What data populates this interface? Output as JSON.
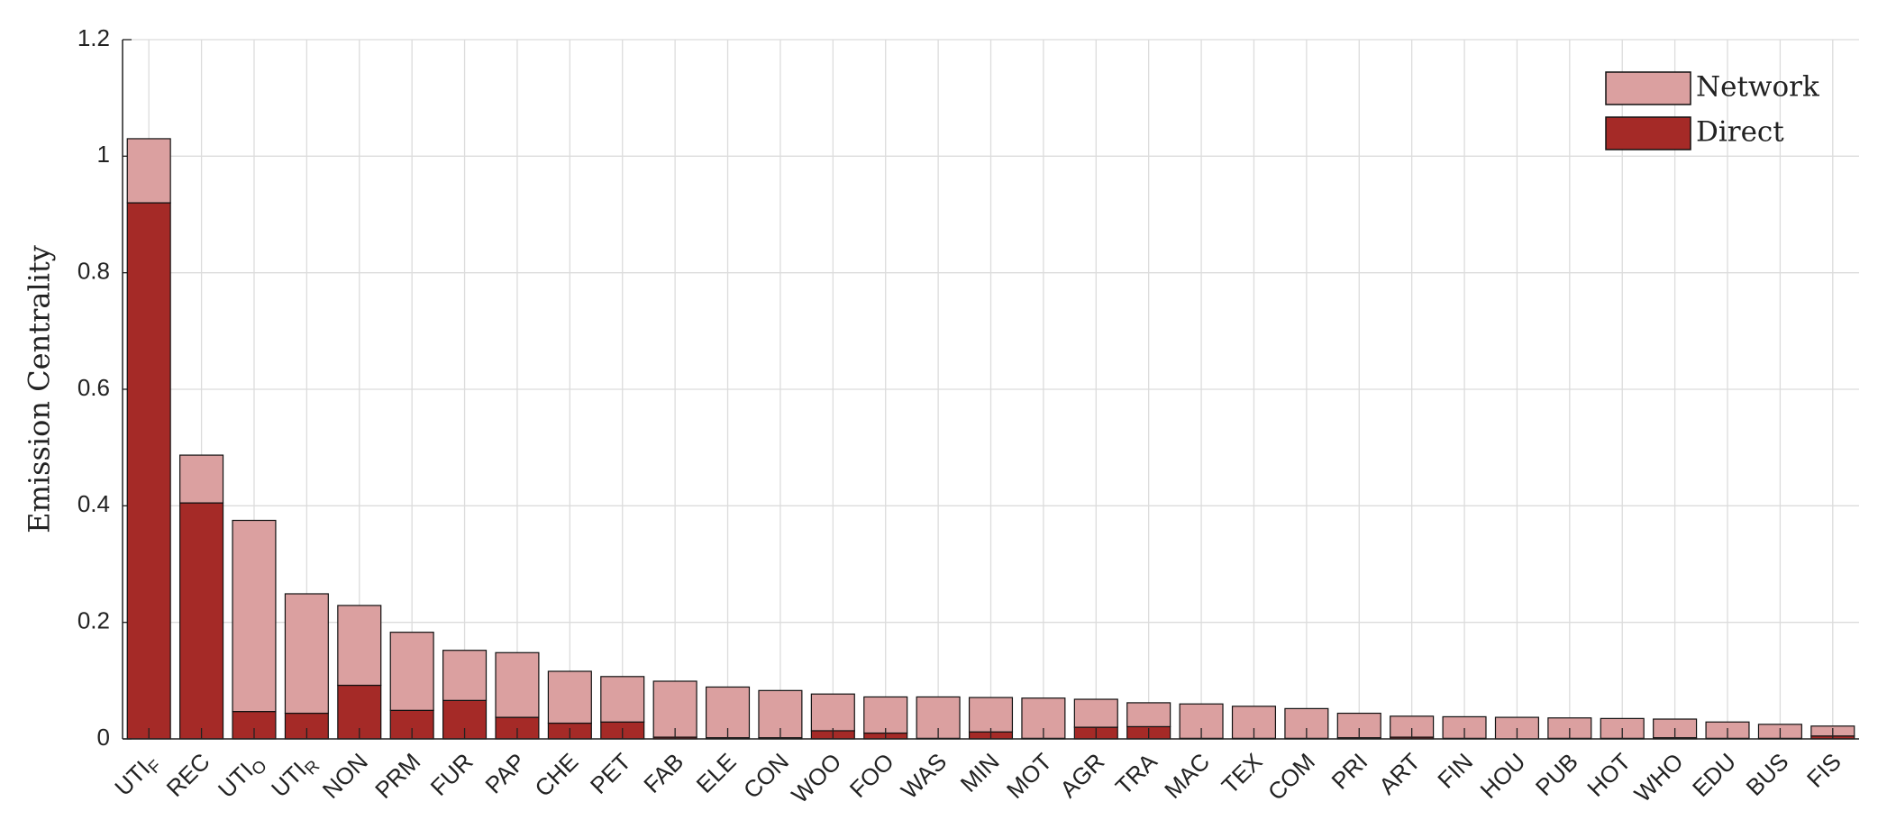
{
  "chart_data": {
    "type": "stacked_bar",
    "y_label": "Emission Centrality",
    "categories": [
      "UTIF",
      "REC",
      "UTIO",
      "UTIR",
      "NON",
      "PRM",
      "FUR",
      "PAP",
      "CHE",
      "PET",
      "FAB",
      "ELE",
      "CON",
      "WOO",
      "FOO",
      "WAS",
      "MIN",
      "MOT",
      "AGR",
      "TRA",
      "MAC",
      "TEX",
      "COM",
      "PRI",
      "ART",
      "FIN",
      "HOU",
      "PUB",
      "HOT",
      "WHO",
      "EDU",
      "BUS",
      "FIS"
    ],
    "series": [
      {
        "name": "Direct",
        "color": "#a52a27",
        "values": [
          0.92,
          0.405,
          0.047,
          0.044,
          0.092,
          0.049,
          0.066,
          0.037,
          0.027,
          0.029,
          0.003,
          0.002,
          0.002,
          0.014,
          0.01,
          0.001,
          0.012,
          0.001,
          0.02,
          0.021,
          0.001,
          0.001,
          0.001,
          0.002,
          0.003,
          0.001,
          0,
          0.001,
          0.001,
          0.002,
          0.001,
          0.001,
          0.005
        ]
      },
      {
        "name": "Network",
        "color": "#dba0a0",
        "values": [
          0.11,
          0.082,
          0.328,
          0.205,
          0.137,
          0.134,
          0.086,
          0.111,
          0.089,
          0.078,
          0.096,
          0.087,
          0.081,
          0.063,
          0.062,
          0.071,
          0.059,
          0.069,
          0.048,
          0.041,
          0.059,
          0.055,
          0.051,
          0.042,
          0.036,
          0.037,
          0.037,
          0.035,
          0.034,
          0.032,
          0.028,
          0.024,
          0.017
        ]
      }
    ],
    "ylim": [
      0,
      1.2
    ],
    "yticks": [
      0,
      0.2,
      0.4,
      0.6,
      0.8,
      1,
      1.2
    ],
    "grid": true,
    "legend": "top-right"
  }
}
